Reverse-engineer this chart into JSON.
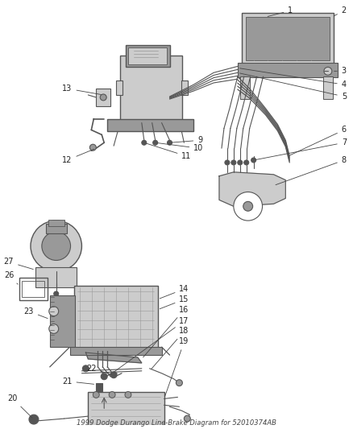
{
  "title": "1999 Dodge Durango Line-Brake Diagram for 52010374AB",
  "background_color": "#ffffff",
  "line_color": "#444444",
  "text_color": "#222222",
  "figsize": [
    4.38,
    5.33
  ],
  "dpi": 100,
  "label_fontsize": 7.0,
  "title_fontsize": 6.0,
  "component_gray": "#888888",
  "dark_gray": "#555555",
  "light_gray": "#cccccc",
  "med_gray": "#999999"
}
